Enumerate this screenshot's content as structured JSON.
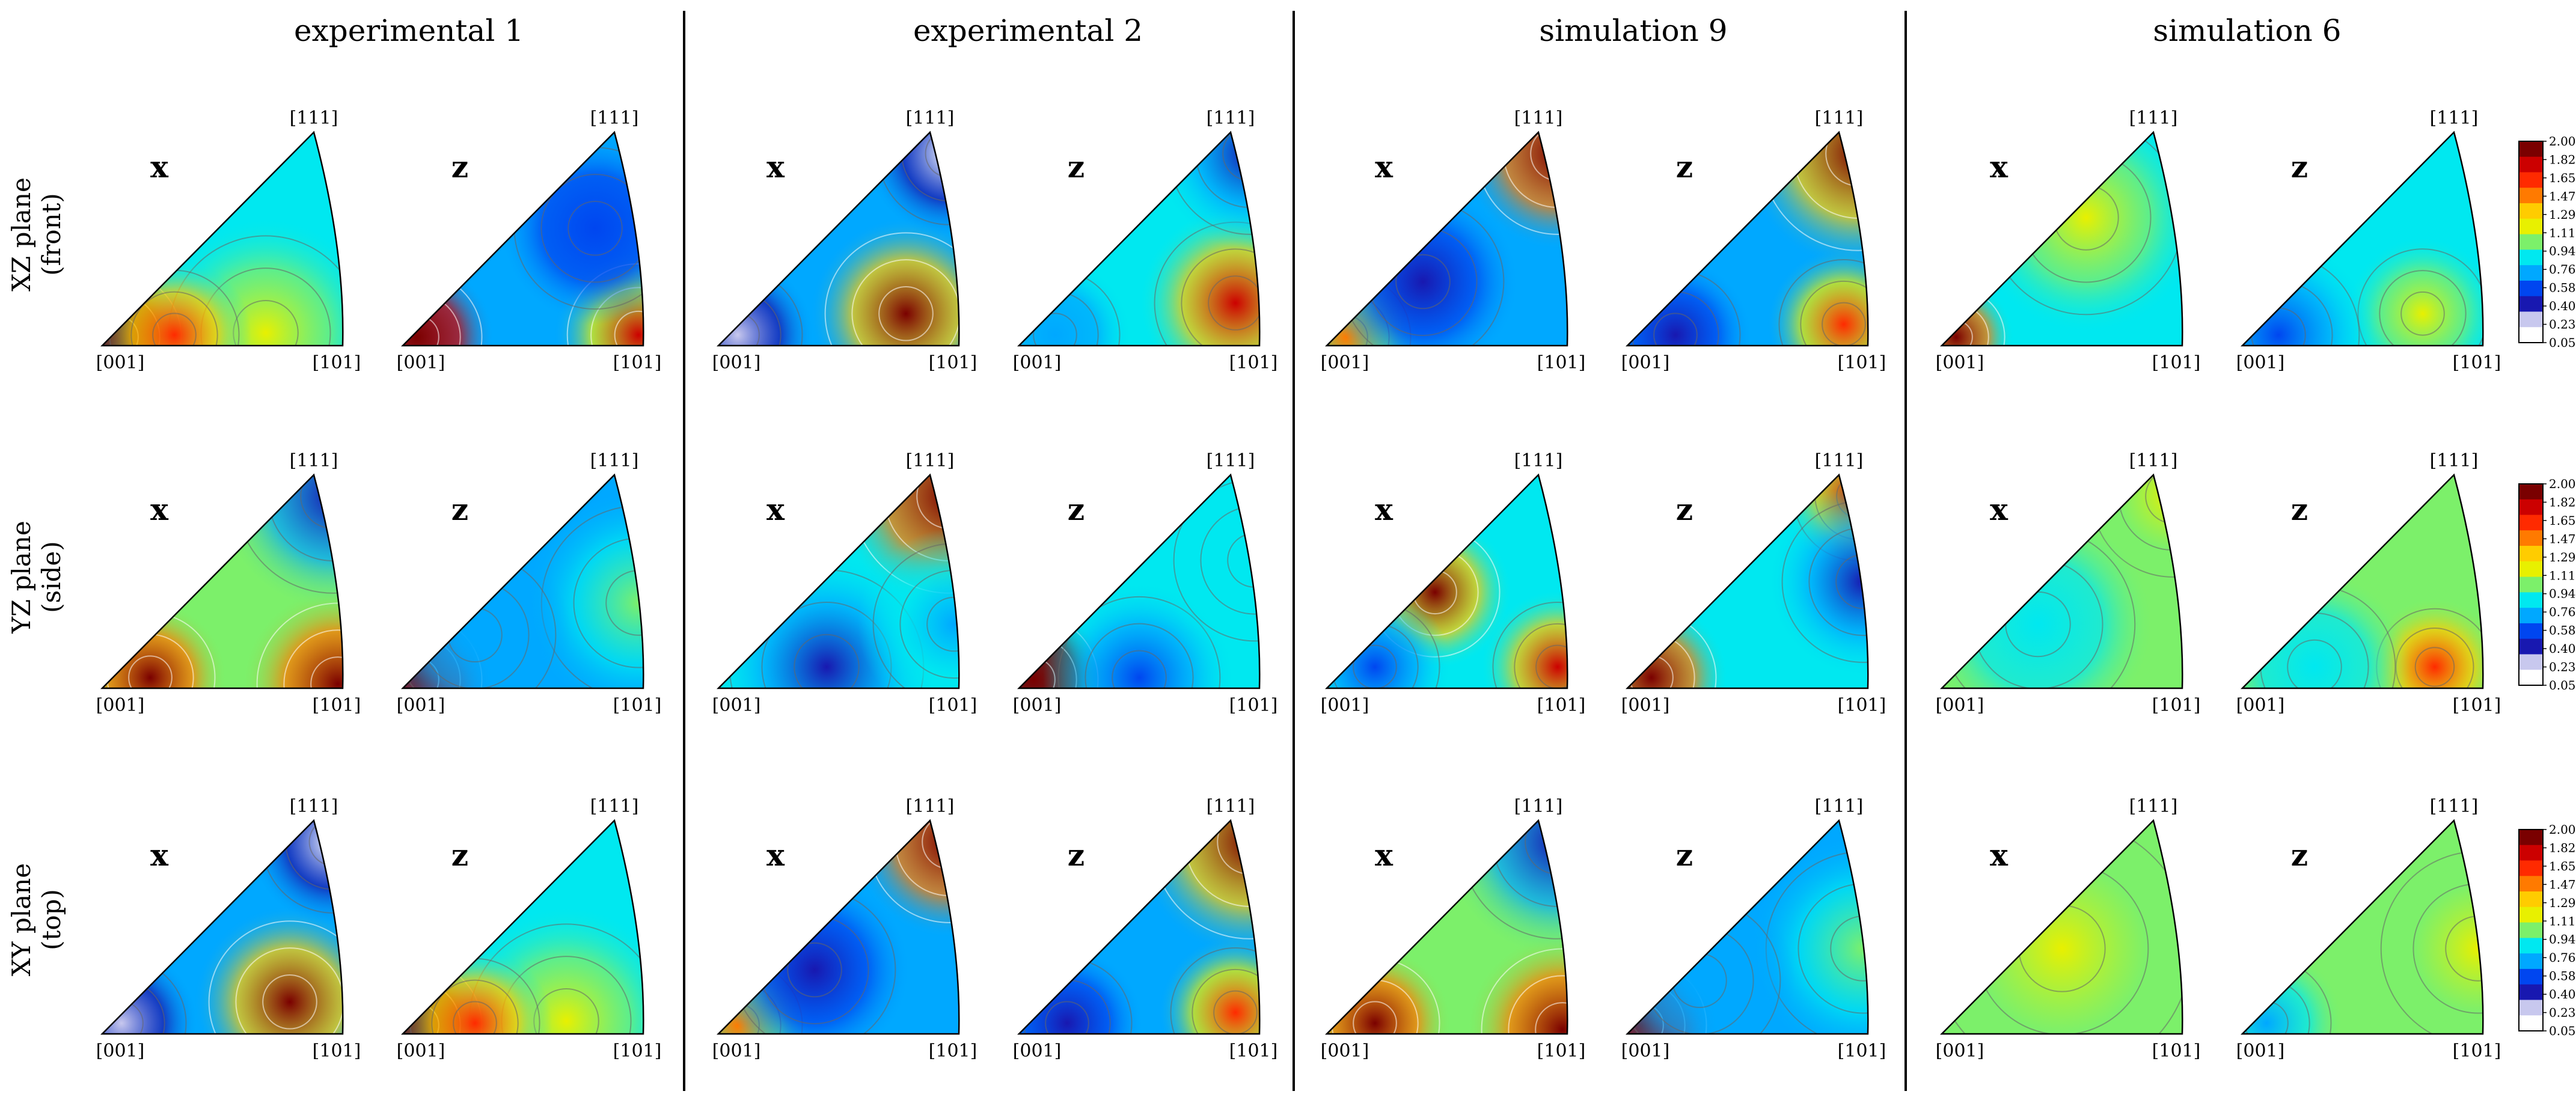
{
  "columns": [
    {
      "title": "experimental 1"
    },
    {
      "title": "experimental 2"
    },
    {
      "title": "simulation 9"
    },
    {
      "title": "simulation 6"
    }
  ],
  "rows": [
    {
      "line1": "XZ plane",
      "line2": "(front)"
    },
    {
      "line1": "YZ plane",
      "line2": "(side)"
    },
    {
      "line1": "XY plane",
      "line2": "(top)"
    }
  ],
  "axes": [
    "x",
    "z"
  ],
  "corner_labels": {
    "top": "[111]",
    "left": "[001]",
    "right": "[101]"
  },
  "colorbar": {
    "ticks": [
      "2.00",
      "1.82",
      "1.65",
      "1.47",
      "1.29",
      "1.11",
      "0.94",
      "0.76",
      "0.58",
      "0.40",
      "0.23",
      "0.05"
    ],
    "colors": [
      "#7a0000",
      "#cc0000",
      "#ff2a00",
      "#ff7a00",
      "#ffcc00",
      "#e8f000",
      "#7cf06a",
      "#00e8f0",
      "#00a8ff",
      "#0046f0",
      "#1818b0",
      "#c8c8ee",
      "#ffffff"
    ]
  },
  "maps": [
    [
      {
        "base": 0.85,
        "bumps": [
          [
            0.06,
            0.04,
            2.3,
            0.2
          ],
          [
            0.68,
            0.06,
            0.35,
            0.3
          ],
          [
            0.3,
            0.05,
            0.9,
            0.2
          ]
        ]
      },
      {
        "base": 0.7,
        "bumps": [
          [
            0.06,
            0.04,
            2.3,
            0.2
          ],
          [
            0.98,
            0.05,
            1.1,
            0.22
          ],
          [
            0.8,
            0.55,
            -0.25,
            0.25
          ]
        ]
      },
      {
        "base": 0.95,
        "bumps": [
          [
            0.2,
            0.05,
            1.1,
            0.2
          ],
          [
            0.98,
            0.02,
            1.1,
            0.25
          ],
          [
            0.96,
            0.9,
            -0.6,
            0.3
          ]
        ]
      },
      {
        "base": 0.75,
        "bumps": [
          [
            0.06,
            0.04,
            2.2,
            0.2
          ],
          [
            0.98,
            0.4,
            0.3,
            0.3
          ],
          [
            0.3,
            0.25,
            -0.15,
            0.25
          ]
        ]
      }
    ],
    [
      {
        "base": 0.6,
        "bumps": [
          [
            0.78,
            0.15,
            1.6,
            0.25
          ],
          [
            0.96,
            0.9,
            -0.55,
            0.22
          ],
          [
            0.08,
            0.05,
            -0.35,
            0.2
          ]
        ]
      },
      {
        "base": 0.9,
        "bumps": [
          [
            0.96,
            0.9,
            1.2,
            0.3
          ],
          [
            0.45,
            0.1,
            -0.5,
            0.3
          ],
          [
            0.98,
            0.3,
            -0.2,
            0.25
          ]
        ]
      },
      {
        "base": 0.9,
        "bumps": [
          [
            0.9,
            0.2,
            1.0,
            0.25
          ],
          [
            0.96,
            0.9,
            -0.6,
            0.25
          ],
          [
            0.15,
            0.05,
            -0.3,
            0.2
          ]
        ]
      },
      {
        "base": 0.9,
        "bumps": [
          [
            0.06,
            0.04,
            2.3,
            0.2
          ],
          [
            0.5,
            0.05,
            -0.35,
            0.25
          ],
          [
            0.98,
            0.6,
            -0.1,
            0.25
          ]
        ]
      }
    ],
    [
      {
        "base": 0.6,
        "bumps": [
          [
            0.96,
            0.9,
            1.8,
            0.25
          ],
          [
            0.08,
            0.04,
            1.0,
            0.2
          ],
          [
            0.4,
            0.3,
            -0.2,
            0.25
          ]
        ]
      },
      {
        "base": 0.7,
        "bumps": [
          [
            0.96,
            0.9,
            1.3,
            0.3
          ],
          [
            0.2,
            0.05,
            -0.4,
            0.2
          ],
          [
            0.9,
            0.1,
            1.0,
            0.2
          ]
        ]
      },
      {
        "base": 0.8,
        "bumps": [
          [
            0.45,
            0.45,
            1.2,
            0.2
          ],
          [
            0.96,
            0.1,
            1.0,
            0.2
          ],
          [
            0.2,
            0.1,
            -0.3,
            0.2
          ]
        ]
      },
      {
        "base": 0.9,
        "bumps": [
          [
            0.96,
            0.9,
            1.0,
            0.2
          ],
          [
            0.1,
            0.05,
            1.2,
            0.2
          ],
          [
            0.98,
            0.5,
            -0.5,
            0.25
          ]
        ]
      }
    ],
    [
      {
        "base": 0.85,
        "bumps": [
          [
            0.6,
            0.6,
            0.4,
            0.3
          ],
          [
            0.06,
            0.04,
            1.4,
            0.15
          ]
        ]
      },
      {
        "base": 0.85,
        "bumps": [
          [
            0.75,
            0.15,
            0.4,
            0.2
          ],
          [
            0.15,
            0.05,
            -0.3,
            0.25
          ]
        ]
      },
      {
        "base": 0.95,
        "bumps": [
          [
            0.96,
            0.9,
            0.3,
            0.25
          ],
          [
            0.4,
            0.3,
            -0.1,
            0.3
          ]
        ]
      },
      {
        "base": 0.95,
        "bumps": [
          [
            0.8,
            0.1,
            0.7,
            0.18
          ],
          [
            0.3,
            0.1,
            -0.1,
            0.25
          ]
        ]
      },
      {
        "base": 0.95,
        "bumps": [
          [
            0.5,
            0.4,
            0.2,
            0.4
          ]
        ]
      },
      {
        "base": 0.95,
        "bumps": [
          [
            0.98,
            0.4,
            0.3,
            0.3
          ],
          [
            0.1,
            0.05,
            -0.2,
            0.2
          ]
        ]
      }
    ]
  ]
}
